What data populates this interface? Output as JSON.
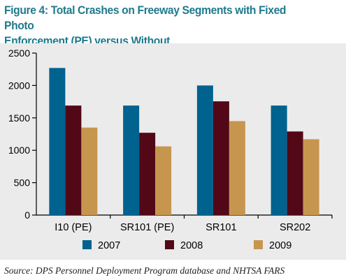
{
  "title_line1": "Figure 4: Total Crashes on Freeway Segments with Fixed Photo",
  "title_line2": "Enforcement (PE) versus Without",
  "source": "Source: DPS Personnel Deployment Program database and NHTSA FARS",
  "colors": {
    "title": "#1f7a8c",
    "panel": "#ebebeb",
    "s2007": "#00628f",
    "s2008": "#520817",
    "s2009": "#c6964f"
  },
  "chart_data": {
    "type": "bar",
    "categories": [
      "I10 (PE)",
      "SR101 (PE)",
      "SR101",
      "SR202"
    ],
    "series": [
      {
        "name": "2007",
        "values": [
          2270,
          1690,
          2000,
          1690
        ]
      },
      {
        "name": "2008",
        "values": [
          1690,
          1270,
          1755,
          1290
        ]
      },
      {
        "name": "2009",
        "values": [
          1350,
          1060,
          1450,
          1170
        ]
      }
    ],
    "yticks": [
      "0",
      "500",
      "1000",
      "1500",
      "2000",
      "2500"
    ],
    "ylim": [
      0,
      2500
    ],
    "grid": false,
    "legend_position": "bottom"
  }
}
